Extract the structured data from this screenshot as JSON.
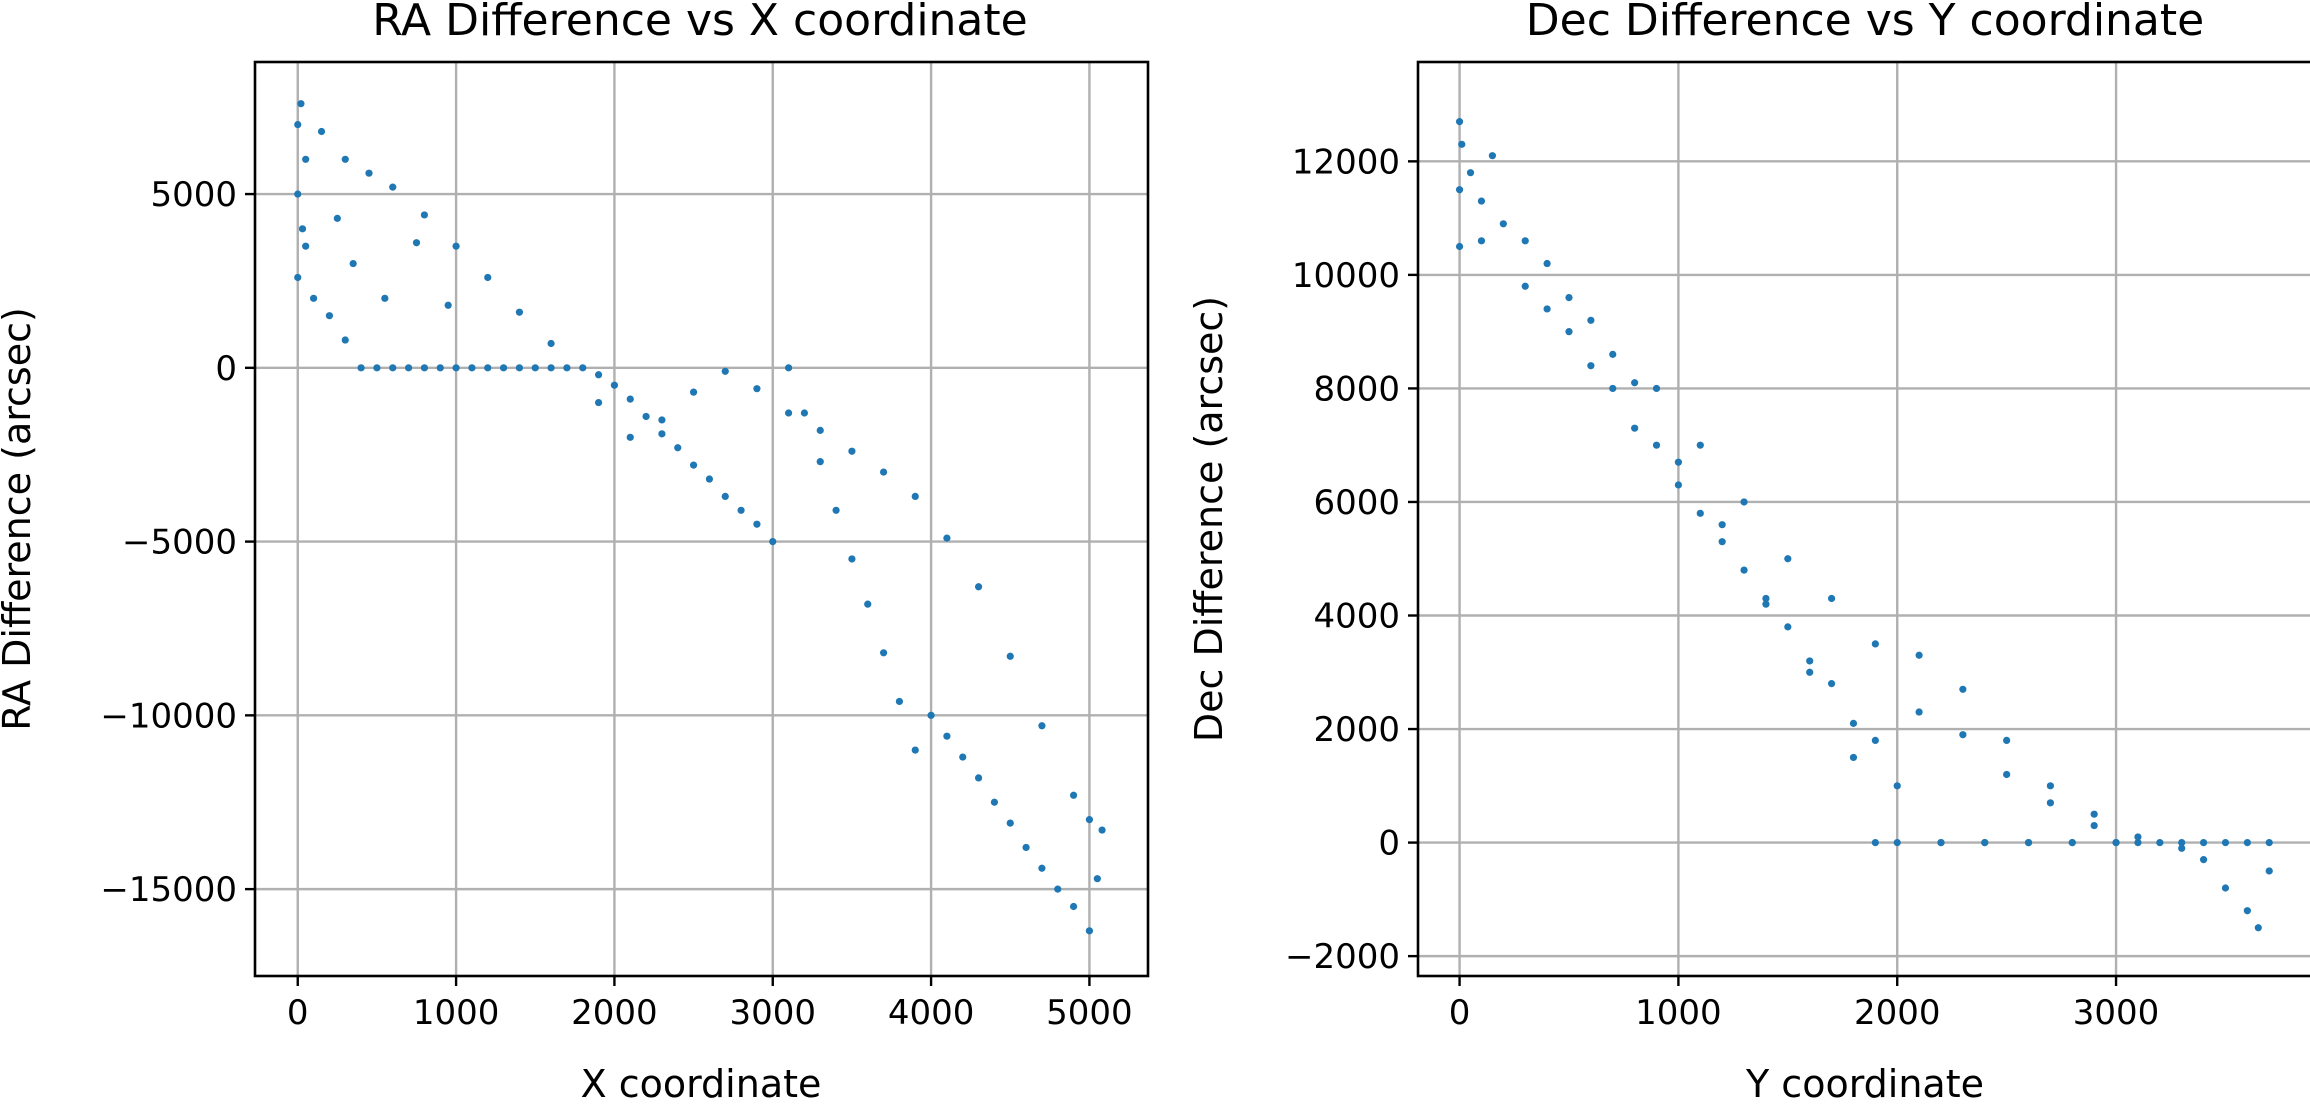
{
  "chart_data": [
    {
      "type": "scatter",
      "title": "RA Difference vs X coordinate",
      "xlabel": "X coordinate",
      "ylabel": "RA Difference (arcsec)",
      "xlim": [
        -270,
        5370
      ],
      "ylim": [
        -17500,
        8800
      ],
      "xticks": [
        0,
        1000,
        2000,
        3000,
        4000,
        5000
      ],
      "yticks": [
        -15000,
        -10000,
        -5000,
        0,
        5000
      ],
      "xtick_labels": [
        "0",
        "1000",
        "2000",
        "3000",
        "4000",
        "5000"
      ],
      "ytick_labels": [
        "−15000",
        "−10000",
        "−5000",
        "0",
        "5000"
      ],
      "grid": true,
      "series": [
        {
          "color": "#1f77b4",
          "x": [
            0,
            0,
            0,
            20,
            30,
            50,
            100,
            200,
            300,
            400,
            500,
            600,
            700,
            800,
            900,
            1000,
            1100,
            1200,
            1300,
            1400,
            1500,
            1600,
            1700,
            1800,
            1900,
            2000,
            2100,
            2200,
            2300,
            2400,
            2500,
            2600,
            2700,
            2800,
            2900,
            3000,
            3100,
            3200,
            3300,
            3400,
            3500,
            3600,
            3700,
            3800,
            3900,
            4000,
            4100,
            4200,
            4300,
            4400,
            4500,
            4600,
            4700,
            4800,
            4900,
            5000,
            5050,
            5080,
            5000,
            4900,
            4700,
            4500,
            4300,
            4100,
            3900,
            3700,
            3500,
            3300,
            3100,
            2900,
            2700,
            2500,
            2300,
            2100,
            1900,
            150,
            300,
            450,
            600,
            800,
            1000,
            1200,
            1400,
            1600,
            50,
            250,
            350,
            550,
            750,
            950
          ],
          "y": [
            2600,
            5000,
            7000,
            7600,
            4000,
            6000,
            2000,
            1500,
            800,
            0,
            0,
            0,
            0,
            0,
            0,
            0,
            0,
            0,
            0,
            0,
            0,
            0,
            0,
            0,
            -200,
            -500,
            -900,
            -1400,
            -1900,
            -2300,
            -2800,
            -3200,
            -3700,
            -4100,
            -4500,
            -5000,
            0,
            -1300,
            -2700,
            -4100,
            -5500,
            -6800,
            -8200,
            -9600,
            -11000,
            -10000,
            -10600,
            -11200,
            -11800,
            -12500,
            -13100,
            -13800,
            -14400,
            -15000,
            -15500,
            -16200,
            -14700,
            -13300,
            -13000,
            -12300,
            -10300,
            -8300,
            -6300,
            -4900,
            -3700,
            -3000,
            -2400,
            -1800,
            -1300,
            -600,
            -100,
            -700,
            -1500,
            -2000,
            -1000,
            6800,
            6000,
            5600,
            5200,
            4400,
            3500,
            2600,
            1600,
            700,
            3500,
            4300,
            3000,
            2000,
            3600,
            1800
          ]
        }
      ]
    },
    {
      "type": "scatter",
      "title": "Dec Difference vs Y coordinate",
      "xlabel": "Y coordinate",
      "ylabel": "Dec Difference (arcsec)",
      "xlim": [
        -190,
        3900
      ],
      "ylim": [
        -2350,
        13750
      ],
      "xticks": [
        0,
        1000,
        2000,
        3000
      ],
      "yticks": [
        -2000,
        0,
        2000,
        4000,
        6000,
        8000,
        10000,
        12000
      ],
      "xtick_labels": [
        "0",
        "1000",
        "2000",
        "3000"
      ],
      "ytick_labels": [
        "−2000",
        "0",
        "2000",
        "4000",
        "6000",
        "8000",
        "10000",
        "12000"
      ],
      "grid": true,
      "series": [
        {
          "color": "#1f77b4",
          "x": [
            0,
            0,
            0,
            10,
            50,
            100,
            150,
            200,
            300,
            400,
            500,
            600,
            700,
            800,
            900,
            1000,
            1100,
            1200,
            1300,
            1400,
            1500,
            1600,
            1700,
            1800,
            1900,
            2000,
            2100,
            2200,
            2300,
            2400,
            2500,
            2600,
            2700,
            2800,
            2900,
            3000,
            3100,
            3200,
            3300,
            3400,
            3500,
            3600,
            3650,
            3700,
            3700,
            3600,
            3500,
            3400,
            3300,
            1900,
            2000,
            2200,
            2400,
            2600,
            2800,
            3000,
            100,
            300,
            500,
            700,
            900,
            1100,
            1300,
            1500,
            1700,
            1900,
            2100,
            2300,
            2500,
            2700,
            2900,
            3100,
            400,
            600,
            800,
            1000,
            1200,
            1400,
            1600,
            1800
          ],
          "y": [
            10500,
            11500,
            12700,
            12300,
            11800,
            11300,
            12100,
            10900,
            10600,
            9400,
            9600,
            8400,
            8600,
            7300,
            8000,
            6300,
            7000,
            5300,
            6000,
            4200,
            5000,
            3200,
            4300,
            2100,
            3500,
            1000,
            3300,
            0,
            2700,
            0,
            1800,
            0,
            1000,
            0,
            500,
            0,
            0,
            0,
            0,
            0,
            0,
            0,
            -1500,
            -500,
            0,
            -1200,
            -800,
            -300,
            -100,
            0,
            0,
            0,
            0,
            0,
            0,
            0,
            10600,
            9800,
            9000,
            8000,
            7000,
            5800,
            4800,
            3800,
            2800,
            1800,
            2300,
            1900,
            1200,
            700,
            300,
            100,
            10200,
            9200,
            8100,
            6700,
            5600,
            4300,
            3000,
            1500
          ]
        }
      ]
    }
  ]
}
